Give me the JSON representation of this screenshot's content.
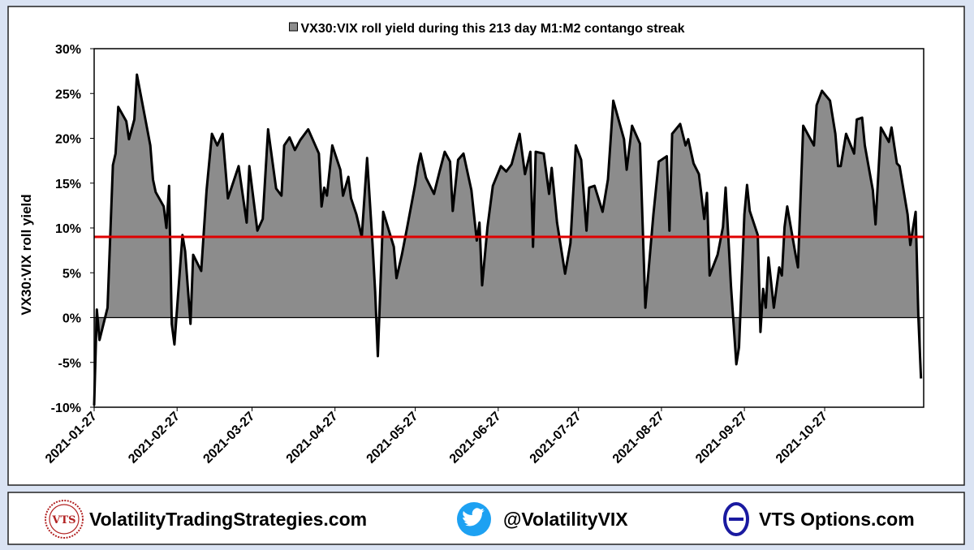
{
  "chart_data": {
    "type": "area",
    "series": [
      {
        "name": "VX30:VIX roll yield during this 213 day M1:M2 contango streak",
        "color": "#8c8c8c",
        "line_color": "#000000",
        "values": [
          -9.8,
          0.9,
          -2.5,
          1.1,
          17,
          18.3,
          23.5,
          21.9,
          19.9,
          22.1,
          27.1,
          19.2,
          15.4,
          14,
          12.4,
          10,
          14.7,
          -0.7,
          -3,
          9.2,
          7.4,
          -0.7,
          7,
          5.2,
          14.2,
          20.5,
          19.2,
          20.5,
          13.3,
          15.1,
          16.9,
          10.6,
          16.9,
          9.7,
          11,
          21,
          14.4,
          13.6,
          19.2,
          20.1,
          18.7,
          19.8,
          21,
          18.3,
          12.4,
          14.5,
          13.6,
          19.2,
          16.5,
          13.6,
          15.7,
          13.3,
          11.5,
          9,
          17.8,
          8.3,
          2.9,
          -4.3,
          11.8,
          7.9,
          4.4,
          7,
          10.1,
          14.9,
          16.9,
          18.3,
          15.6,
          13.8,
          16.2,
          18.5,
          17.4,
          11.9,
          17.6,
          18.3,
          14.2,
          8.6,
          10.6,
          3.6,
          10.1,
          14.7,
          16.9,
          16.3,
          17.1,
          20.5,
          16,
          18.5,
          7.9,
          18.5,
          18.3,
          13.8,
          16.7,
          10.6,
          4.9,
          8.3,
          19.2,
          17.6,
          9.7,
          14.5,
          14.7,
          11.8,
          15.4,
          24.2,
          19.9,
          16.5,
          21.4,
          19.4,
          1.1,
          11.5,
          17.4,
          18,
          9.7,
          20.5,
          21.6,
          19.2,
          19.9,
          17.2,
          16,
          11,
          13.9,
          4.7,
          7,
          10.1,
          14.5,
          3.5,
          -5.2,
          -3.3,
          11.5,
          14.8,
          11.9,
          9.2,
          -1.6,
          3.2,
          1.1,
          6.7,
          1.1,
          5.6,
          4.7,
          10.1,
          12.4,
          7.2,
          5.6,
          21.4,
          19.2,
          23.7,
          25.3,
          24.2,
          20.5,
          16.9,
          16.9,
          20.5,
          18.3,
          22.1,
          22.3,
          19.2,
          14.2,
          10.4,
          21.2,
          19.6,
          21.2,
          17.2,
          16.9,
          11.5,
          8.1,
          11.8,
          0.2,
          -6.8
        ]
      }
    ],
    "x": [
      "2021-01-27",
      "2021-01-28",
      "2021-01-29",
      "2021-02-01",
      "2021-02-03",
      "2021-02-04",
      "2021-02-05",
      "2021-02-08",
      "2021-02-09",
      "2021-02-11",
      "2021-02-12",
      "2021-02-17",
      "2021-02-18",
      "2021-02-19",
      "2021-02-22",
      "2021-02-23",
      "2021-02-24",
      "2021-02-25",
      "2021-02-26",
      "2021-03-01",
      "2021-03-02",
      "2021-03-04",
      "2021-03-05",
      "2021-03-08",
      "2021-03-10",
      "2021-03-12",
      "2021-03-14",
      "2021-03-16",
      "2021-03-18",
      "2021-03-20",
      "2021-03-22",
      "2021-03-25",
      "2021-03-26",
      "2021-03-29",
      "2021-03-31",
      "2021-04-02",
      "2021-04-05",
      "2021-04-07",
      "2021-04-08",
      "2021-04-10",
      "2021-04-12",
      "2021-04-14",
      "2021-04-17",
      "2021-04-21",
      "2021-04-22",
      "2021-04-23",
      "2021-04-24",
      "2021-04-26",
      "2021-04-29",
      "2021-04-30",
      "2021-05-02",
      "2021-05-03",
      "2021-05-05",
      "2021-05-07",
      "2021-05-09",
      "2021-05-11",
      "2021-05-12",
      "2021-05-13",
      "2021-05-15",
      "2021-05-19",
      "2021-05-20",
      "2021-05-22",
      "2021-05-24",
      "2021-05-27",
      "2021-05-28",
      "2021-05-29",
      "2021-05-31",
      "2021-06-03",
      "2021-06-05",
      "2021-06-07",
      "2021-06-09",
      "2021-06-10",
      "2021-06-12",
      "2021-06-14",
      "2021-06-17",
      "2021-06-19",
      "2021-06-20",
      "2021-06-21",
      "2021-06-23",
      "2021-06-25",
      "2021-06-28",
      "2021-06-30",
      "2021-07-02",
      "2021-07-05",
      "2021-07-07",
      "2021-07-09",
      "2021-07-10",
      "2021-07-11",
      "2021-07-14",
      "2021-07-16",
      "2021-07-17",
      "2021-07-19",
      "2021-07-22",
      "2021-07-24",
      "2021-07-26",
      "2021-07-28",
      "2021-07-30",
      "2021-07-31",
      "2021-08-02",
      "2021-08-05",
      "2021-08-07",
      "2021-08-09",
      "2021-08-13",
      "2021-08-14",
      "2021-08-16",
      "2021-08-19",
      "2021-08-21",
      "2021-08-24",
      "2021-08-26",
      "2021-08-29",
      "2021-08-30",
      "2021-08-31",
      "2021-09-03",
      "2021-09-05",
      "2021-09-06",
      "2021-09-08",
      "2021-09-10",
      "2021-09-12",
      "2021-09-13",
      "2021-09-14",
      "2021-09-17",
      "2021-09-19",
      "2021-09-20",
      "2021-09-22",
      "2021-09-24",
      "2021-09-25",
      "2021-09-27",
      "2021-09-28",
      "2021-09-29",
      "2021-10-02",
      "2021-10-03",
      "2021-10-04",
      "2021-10-05",
      "2021-10-06",
      "2021-10-08",
      "2021-10-10",
      "2021-10-11",
      "2021-10-12",
      "2021-10-13",
      "2021-10-16",
      "2021-10-17",
      "2021-10-19",
      "2021-10-23",
      "2021-10-24",
      "2021-10-26",
      "2021-10-29",
      "2021-10-31",
      "2021-11-01",
      "2021-11-02",
      "2021-11-04",
      "2021-11-07",
      "2021-11-08",
      "2021-11-10",
      "2021-11-11",
      "2021-11-14",
      "2021-11-15",
      "2021-11-17",
      "2021-11-20",
      "2021-11-21",
      "2021-11-23",
      "2021-11-24",
      "2021-11-27",
      "2021-11-28",
      "2021-11-30",
      "2021-12-01",
      "2021-12-02"
    ],
    "xlim": [
      "2021-01-27",
      "2021-12-03"
    ],
    "xticks": [
      "2021-01-27",
      "2021-02-27",
      "2021-03-27",
      "2021-04-27",
      "2021-05-27",
      "2021-06-27",
      "2021-07-27",
      "2021-08-27",
      "2021-09-27",
      "2021-10-27"
    ],
    "ylabel": "VX30:VIX roll yield",
    "ylim": [
      -10,
      30
    ],
    "yticks": [
      {
        "value": -10,
        "label": "-10%"
      },
      {
        "value": -5,
        "label": "-5%"
      },
      {
        "value": 0,
        "label": "0%"
      },
      {
        "value": 5,
        "label": "5%"
      },
      {
        "value": 10,
        "label": "10%"
      },
      {
        "value": 15,
        "label": "15%"
      },
      {
        "value": 20,
        "label": "20%"
      },
      {
        "value": 25,
        "label": "25%"
      },
      {
        "value": 30,
        "label": "30%"
      }
    ],
    "reference_line": {
      "value": 9,
      "color": "#e00000"
    },
    "grid": false,
    "legend": "top"
  },
  "footer": {
    "items": [
      "VolatilityTradingStrategies.com",
      "@VolatilityVIX",
      "VTS Options.com"
    ],
    "logo": "VTS"
  }
}
